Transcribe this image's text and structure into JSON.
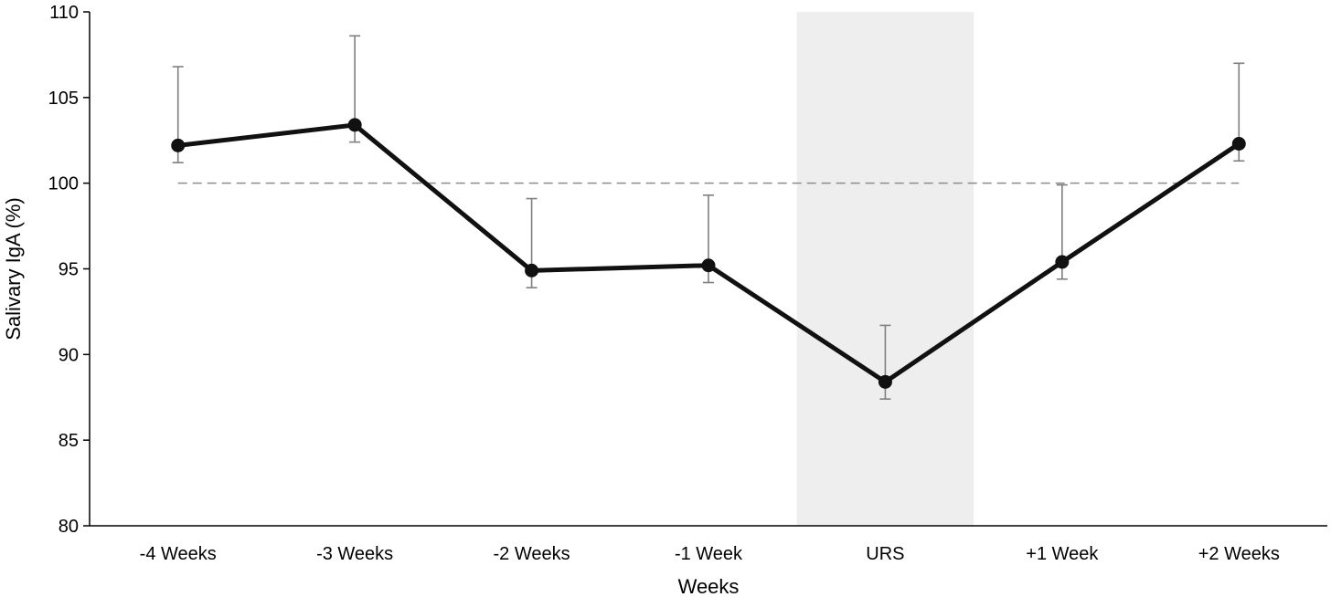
{
  "chart_data": {
    "type": "line",
    "title": "",
    "xlabel": "Weeks",
    "ylabel": "Salivary IgA (%)",
    "categories": [
      "-4 Weeks",
      "-3 Weeks",
      "-2 Weeks",
      "-1 Week",
      "URS",
      "+1 Week",
      "+2 Weeks"
    ],
    "series": [
      {
        "values": [
          102.2,
          103.4,
          94.9,
          95.2,
          88.4,
          95.4,
          102.3
        ],
        "error_upper": [
          106.8,
          108.6,
          99.1,
          99.3,
          91.7,
          99.9,
          107.0
        ],
        "error_lower": [
          101.2,
          102.4,
          93.9,
          94.2,
          87.4,
          94.4,
          101.3
        ]
      }
    ],
    "ylim": [
      80,
      110
    ],
    "yticks": [
      80,
      85,
      90,
      95,
      100,
      105,
      110
    ],
    "reference_line": {
      "y": 100,
      "style": "dashed"
    },
    "highlight_category": "URS",
    "grid": false,
    "legend": "none",
    "colors": {
      "line": "#111111",
      "error_bar": "#7f7f7f",
      "reference": "#8c8c8c",
      "highlight": "#eeeeee",
      "axis": "#000000"
    }
  }
}
